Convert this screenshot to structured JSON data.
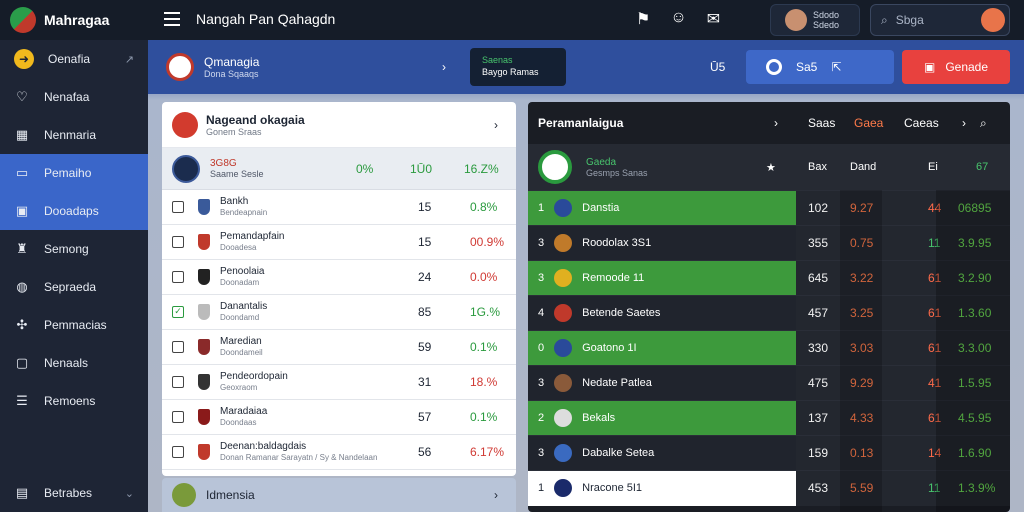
{
  "brand": {
    "name": "Mahragaa"
  },
  "topbar": {
    "title": "Nangah Pan Qahagdn",
    "icons": [
      "flag-icon",
      "user-icon",
      "chat-icon"
    ],
    "user": {
      "line1": "Sdodo",
      "line2": "Sdedo"
    },
    "search_placeholder": "Sbga"
  },
  "sidebar": {
    "items": [
      {
        "label": "Oenafia",
        "icon": "arrow-icon"
      },
      {
        "label": "Nenafaa",
        "icon": "heart-icon"
      },
      {
        "label": "Nenmaria",
        "icon": "grid-icon"
      },
      {
        "label": "Pemaiho",
        "icon": "monitor-icon"
      },
      {
        "label": "Dooadaps",
        "icon": "calendar-icon"
      },
      {
        "label": "Semong",
        "icon": "trophy-icon"
      },
      {
        "label": "Sepraeda",
        "icon": "globe-icon"
      },
      {
        "label": "Pemmacias",
        "icon": "pin-icon"
      },
      {
        "label": "Nenaals",
        "icon": "doc-icon"
      },
      {
        "label": "Remoens",
        "icon": "list-icon"
      }
    ],
    "footer": {
      "label": "Betrabes"
    }
  },
  "header": {
    "title": "Qmanagia",
    "subtitle": "Dona Sqaaqs",
    "card_title": "Saenas",
    "card_subtitle": "Baygo Ramas",
    "number": "Ū5",
    "button_label": "Sa5",
    "red_button_label": "Genade"
  },
  "left_panel": {
    "title": "Nageand okagaia",
    "subtitle": "Gonem Sraas",
    "highlight": {
      "rank": "3G8G",
      "name": "Saame Sesle",
      "v1": "0%",
      "v2": "1Ū0",
      "v3": "16.Z%"
    },
    "rows": [
      {
        "name": "Bankh",
        "sub": "Bendeapnain",
        "num": "15",
        "pct": "0.8%",
        "color": "green",
        "checked": false,
        "crest": "#3a5a9a"
      },
      {
        "name": "Pemandapfain",
        "sub": "Dooadesa",
        "num": "15",
        "pct": "00.9%",
        "color": "red",
        "checked": false,
        "crest": "#c0392b"
      },
      {
        "name": "Penoolaia",
        "sub": "Doonadam",
        "num": "24",
        "pct": "0.0%",
        "color": "red",
        "checked": false,
        "crest": "#222"
      },
      {
        "name": "Danantalis",
        "sub": "Doondamd",
        "num": "85",
        "pct": "1G.%",
        "color": "green",
        "checked": true,
        "crest": "#bbb"
      },
      {
        "name": "Maredian",
        "sub": "Doondameil",
        "num": "59",
        "pct": "0.1%",
        "color": "green",
        "checked": false,
        "crest": "#8a2a2a"
      },
      {
        "name": "Pendeordopain",
        "sub": "Geoxraom",
        "num": "31",
        "pct": "18.%",
        "color": "red",
        "checked": false,
        "crest": "#333"
      },
      {
        "name": "Maradaiaa",
        "sub": "Doondaas",
        "num": "57",
        "pct": "0.1%",
        "color": "green",
        "checked": false,
        "crest": "#8a1a1a"
      },
      {
        "name": "Deenan:baldagdais",
        "sub": "Donan Ramanar Sarayatn / Sy & Nandelaan",
        "num": "56",
        "pct": "6.17%",
        "color": "red",
        "checked": false,
        "crest": "#c0392b"
      }
    ],
    "footer": "Idmensia"
  },
  "right_panel": {
    "title": "Peramanlaigua",
    "headers": [
      "Saas",
      "Gaea",
      "Caeas"
    ],
    "sub": {
      "name": "Gaeda",
      "subname": "Gesmps Sanas",
      "h1": "Bax",
      "h2": "Dand",
      "h3": "Ei",
      "h4": "67"
    },
    "rows": [
      {
        "rank": "1",
        "team": "Danstia",
        "style": "g",
        "c1": "102",
        "c2": "9.27",
        "c3": "44",
        "c4": "06895",
        "crest": "#2a4a9a"
      },
      {
        "rank": "3",
        "team": "Roodolax 3S1",
        "style": "d",
        "c1": "355",
        "c2": "0.75",
        "c3": "11",
        "c4": "3.9.95",
        "crest": "#c07a2a"
      },
      {
        "rank": "3",
        "team": "Remoode 11",
        "style": "g",
        "c1": "645",
        "c2": "3.22",
        "c3": "61",
        "c4": "3.2.90",
        "crest": "#e0b020"
      },
      {
        "rank": "4",
        "team": "Betende Saetes",
        "style": "d",
        "c1": "457",
        "c2": "3.25",
        "c3": "61",
        "c4": "1.3.60",
        "crest": "#c0392b"
      },
      {
        "rank": "0",
        "team": "Goatono 1I",
        "style": "g",
        "c1": "330",
        "c2": "3.03",
        "c3": "61",
        "c4": "3.3.00",
        "crest": "#2a4a9a"
      },
      {
        "rank": "3",
        "team": "Nedate Patlea",
        "style": "d",
        "c1": "475",
        "c2": "9.29",
        "c3": "41",
        "c4": "1.5.95",
        "crest": "#8a5a3a"
      },
      {
        "rank": "2",
        "team": "Bekals",
        "style": "g",
        "c1": "137",
        "c2": "4.33",
        "c3": "61",
        "c4": "4.5.95",
        "crest": "#ddd"
      },
      {
        "rank": "3",
        "team": "Dabalke Setea",
        "style": "d",
        "c1": "159",
        "c2": "0.13",
        "c3": "14",
        "c4": "1.6.90",
        "crest": "#3a6ac0"
      },
      {
        "rank": "1",
        "team": "Nracone 5I1",
        "style": "w",
        "c1": "453",
        "c2": "5.59",
        "c3": "11",
        "c4": "1.3.9%",
        "crest": "#1a2a6a"
      }
    ]
  }
}
